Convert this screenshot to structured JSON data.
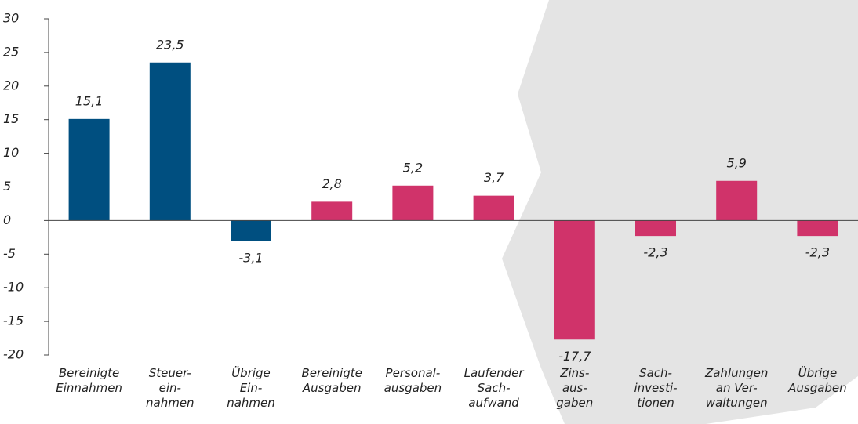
{
  "chart_data": {
    "type": "bar",
    "categories": [
      "Bereinigte\nEinnahmen",
      "Steuer-\nein-\nnahmen",
      "Übrige\nEin-\nnahmen",
      "Bereinigte\nAusgaben",
      "Personal-\nausgaben",
      "Laufender\nSach-\naufwand",
      "Zins-\naus-\ngaben",
      "Sach-\ninvesti-\ntionen",
      "Zahlungen\nan Ver-\nwaltungen",
      "Übrige\nAusgaben"
    ],
    "values": [
      15.1,
      23.5,
      -3.1,
      2.8,
      5.2,
      3.7,
      -17.7,
      -2.3,
      5.9,
      -2.3
    ],
    "value_labels": [
      "15,1",
      "23,5",
      "-3,1",
      "2,8",
      "5,2",
      "3,7",
      "-17,7",
      "-2,3",
      "5,9",
      "-2,3"
    ],
    "colors": [
      "#004f80",
      "#004f80",
      "#004f80",
      "#d0336a",
      "#d0336a",
      "#d0336a",
      "#d0336a",
      "#d0336a",
      "#d0336a",
      "#d0336a"
    ],
    "ylim": [
      -20,
      30
    ],
    "yticks": [
      -20,
      -15,
      -10,
      -5,
      0,
      5,
      10,
      15,
      20,
      25,
      30
    ],
    "grid": false
  }
}
